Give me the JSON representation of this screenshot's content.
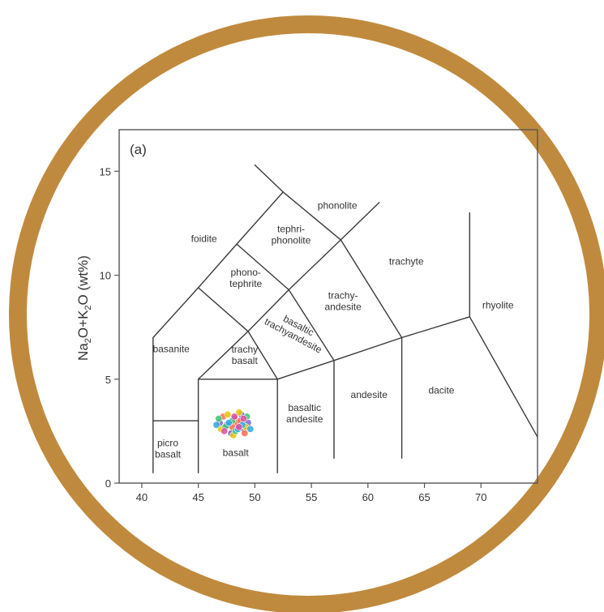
{
  "chart_data": {
    "type": "scatter",
    "title": "",
    "panel_label": "(a)",
    "xlabel": "",
    "ylabel": {
      "parts": [
        "Na",
        "2",
        "O+K",
        "2",
        "O (wt%)"
      ]
    },
    "xlim": [
      38,
      75
    ],
    "ylim": [
      0,
      17
    ],
    "x_ticks": [
      40,
      45,
      50,
      55,
      60,
      65,
      70
    ],
    "y_ticks": [
      0,
      5,
      10,
      15
    ],
    "grid": false,
    "frame_color": "#555555",
    "ring_color": "#c08a3e",
    "boundaries": [
      [
        [
          41,
          0.5
        ],
        [
          41,
          7
        ],
        [
          45,
          9.4
        ],
        [
          48.4,
          11.5
        ],
        [
          52.5,
          14
        ],
        [
          57.6,
          11.7
        ],
        [
          63,
          7
        ],
        [
          69,
          8
        ],
        [
          77.3,
          0
        ]
      ],
      [
        [
          41,
          3
        ],
        [
          45,
          3
        ]
      ],
      [
        [
          45,
          0.5
        ],
        [
          45,
          5
        ],
        [
          49.4,
          7.3
        ],
        [
          53,
          9.3
        ],
        [
          57.6,
          11.7
        ],
        [
          61,
          13.5
        ]
      ],
      [
        [
          52,
          0.5
        ],
        [
          52,
          5
        ],
        [
          57,
          5.9
        ],
        [
          63,
          7
        ]
      ],
      [
        [
          57,
          1.2
        ],
        [
          57,
          5.9
        ]
      ],
      [
        [
          63,
          1.2
        ],
        [
          63,
          7
        ]
      ],
      [
        [
          69,
          8
        ],
        [
          69,
          13
        ]
      ],
      [
        [
          45,
          5
        ],
        [
          52,
          5
        ],
        [
          49.4,
          7.3
        ],
        [
          45,
          9.4
        ]
      ],
      [
        [
          57,
          5.9
        ],
        [
          53,
          9.3
        ],
        [
          48.4,
          11.5
        ]
      ],
      [
        [
          52.5,
          14
        ],
        [
          50,
          15.3
        ]
      ]
    ],
    "regions": [
      {
        "label": "foidite",
        "x": 45.5,
        "y": 11.6
      },
      {
        "label": "phonolite",
        "x": 57.3,
        "y": 13.2
      },
      {
        "label": "tephri-\nphonolite",
        "x": 53.2,
        "y": 11.8
      },
      {
        "label": "trachyte",
        "x": 63.4,
        "y": 10.5
      },
      {
        "label": "phono-\ntephrite",
        "x": 49.2,
        "y": 9.7
      },
      {
        "label": "trachy-\nandesite",
        "x": 57.8,
        "y": 8.6
      },
      {
        "label": "rhyolite",
        "x": 71.5,
        "y": 8.4
      },
      {
        "label": "basanite",
        "x": 42.6,
        "y": 6.3
      },
      {
        "label": "basaltic\ntrachyandesite",
        "x": 53.5,
        "y": 7.2
      },
      {
        "label": "trachy\nbasalt",
        "x": 49.1,
        "y": 6.0
      },
      {
        "label": "andesite",
        "x": 60.1,
        "y": 4.1
      },
      {
        "label": "dacite",
        "x": 66.5,
        "y": 4.3
      },
      {
        "label": "basaltic\nandesite",
        "x": 54.4,
        "y": 3.2
      },
      {
        "label": "picro\nbasalt",
        "x": 42.3,
        "y": 1.5
      },
      {
        "label": "basalt",
        "x": 48.3,
        "y": 1.3
      }
    ],
    "series": [
      {
        "color": "#7b68c8",
        "points": [
          [
            47.5,
            2.8
          ],
          [
            48.2,
            3.1
          ],
          [
            49.0,
            2.6
          ],
          [
            47.9,
            2.4
          ],
          [
            48.8,
            3.3
          ],
          [
            46.9,
            2.9
          ],
          [
            49.4,
            2.9
          ]
        ]
      },
      {
        "color": "#ff6b4a",
        "points": [
          [
            48.4,
            2.9
          ],
          [
            47.2,
            3.2
          ],
          [
            49.1,
            2.4
          ],
          [
            48.0,
            2.7
          ],
          [
            48.7,
            3.0
          ]
        ]
      },
      {
        "color": "#e8c400",
        "points": [
          [
            47.0,
            2.6
          ],
          [
            48.6,
            3.4
          ],
          [
            48.1,
            2.3
          ],
          [
            47.6,
            3.3
          ],
          [
            49.2,
            2.7
          ]
        ]
      },
      {
        "color": "#3cbf7a",
        "points": [
          [
            48.3,
            2.5
          ],
          [
            47.4,
            2.7
          ],
          [
            49.3,
            3.2
          ],
          [
            48.0,
            3.0
          ],
          [
            46.8,
            3.1
          ]
        ]
      },
      {
        "color": "#29a8e0",
        "points": [
          [
            48.9,
            2.8
          ],
          [
            47.7,
            2.9
          ],
          [
            48.5,
            2.6
          ],
          [
            46.6,
            2.8
          ],
          [
            49.6,
            2.6
          ]
        ]
      },
      {
        "color": "#d94fa0",
        "points": [
          [
            48.2,
            3.2
          ],
          [
            47.3,
            2.5
          ],
          [
            49.0,
            3.1
          ],
          [
            48.6,
            2.7
          ]
        ]
      }
    ]
  }
}
